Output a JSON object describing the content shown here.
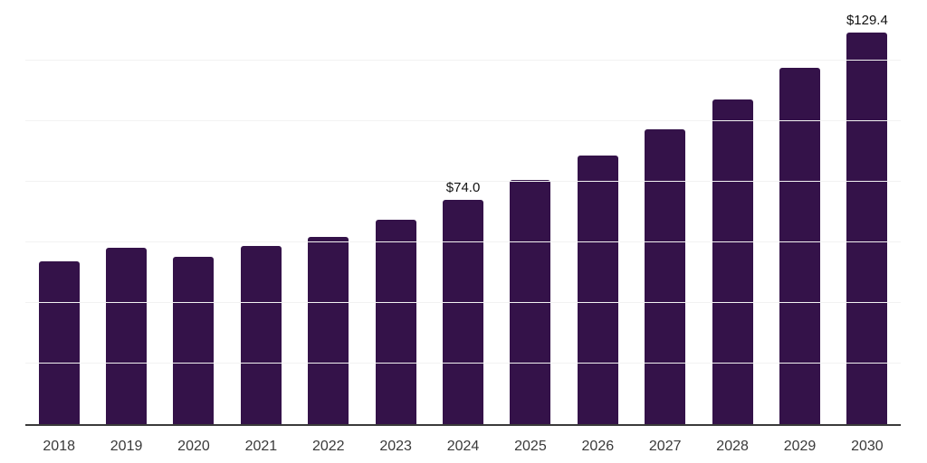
{
  "chart_data": {
    "type": "bar",
    "title": "",
    "xlabel": "",
    "ylabel": "",
    "categories": [
      "2018",
      "2019",
      "2020",
      "2021",
      "2022",
      "2023",
      "2024",
      "2025",
      "2026",
      "2027",
      "2028",
      "2029",
      "2030"
    ],
    "values": [
      53.7,
      58.1,
      55.2,
      58.7,
      61.8,
      67.5,
      74.0,
      80.6,
      88.7,
      97.3,
      107.2,
      117.6,
      129.4
    ],
    "value_labels": {
      "2024": "$74.0",
      "2030": "$129.4"
    },
    "ylim": [
      0,
      140
    ],
    "grid_step": 20,
    "grid": "horizontal",
    "y_tick_labels_shown": false,
    "legend_position": "none",
    "colors": {
      "bar": "#341249",
      "axis_line": "#3a3a3a",
      "gridline": "#f2f2f2",
      "tick_label": "#3a3a3a",
      "value_label": "#111111",
      "background": "#ffffff"
    }
  }
}
